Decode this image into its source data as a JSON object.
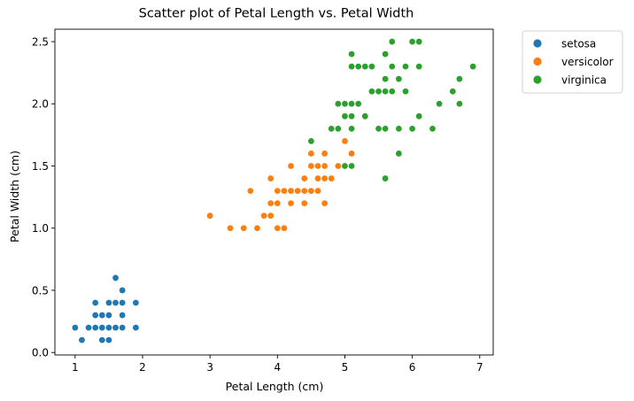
{
  "chart_data": {
    "type": "scatter",
    "title": "Scatter plot of Petal Length vs. Petal Width",
    "xlabel": "Petal Length (cm)",
    "ylabel": "Petal Width (cm)",
    "xlim": [
      0.7,
      7.2
    ],
    "ylim": [
      -0.02,
      2.6
    ],
    "xticks": [
      1,
      2,
      3,
      4,
      5,
      6,
      7
    ],
    "xtick_labels": [
      "1",
      "2",
      "3",
      "4",
      "5",
      "6",
      "7"
    ],
    "yticks": [
      0.0,
      0.5,
      1.0,
      1.5,
      2.0,
      2.5
    ],
    "ytick_labels": [
      "0.0",
      "0.5",
      "1.0",
      "1.5",
      "2.0",
      "2.5"
    ],
    "grid": false,
    "legend_position": "outside-upper-right",
    "series": [
      {
        "name": "setosa",
        "color": "#1f77b4",
        "points": [
          [
            1.0,
            0.2
          ],
          [
            1.1,
            0.1
          ],
          [
            1.2,
            0.2
          ],
          [
            1.3,
            0.2
          ],
          [
            1.3,
            0.3
          ],
          [
            1.3,
            0.4
          ],
          [
            1.4,
            0.1
          ],
          [
            1.4,
            0.2
          ],
          [
            1.4,
            0.3
          ],
          [
            1.5,
            0.1
          ],
          [
            1.5,
            0.2
          ],
          [
            1.5,
            0.3
          ],
          [
            1.5,
            0.4
          ],
          [
            1.6,
            0.2
          ],
          [
            1.6,
            0.4
          ],
          [
            1.6,
            0.6
          ],
          [
            1.7,
            0.2
          ],
          [
            1.7,
            0.3
          ],
          [
            1.7,
            0.4
          ],
          [
            1.7,
            0.5
          ],
          [
            1.9,
            0.2
          ],
          [
            1.9,
            0.4
          ]
        ]
      },
      {
        "name": "versicolor",
        "color": "#ff7f0e",
        "points": [
          [
            3.0,
            1.1
          ],
          [
            3.3,
            1.0
          ],
          [
            3.5,
            1.0
          ],
          [
            3.6,
            1.3
          ],
          [
            3.7,
            1.0
          ],
          [
            3.8,
            1.1
          ],
          [
            3.9,
            1.1
          ],
          [
            3.9,
            1.2
          ],
          [
            3.9,
            1.4
          ],
          [
            4.0,
            1.0
          ],
          [
            4.0,
            1.2
          ],
          [
            4.0,
            1.3
          ],
          [
            4.1,
            1.0
          ],
          [
            4.1,
            1.3
          ],
          [
            4.2,
            1.2
          ],
          [
            4.2,
            1.3
          ],
          [
            4.2,
            1.5
          ],
          [
            4.3,
            1.3
          ],
          [
            4.4,
            1.2
          ],
          [
            4.4,
            1.3
          ],
          [
            4.4,
            1.4
          ],
          [
            4.5,
            1.3
          ],
          [
            4.5,
            1.5
          ],
          [
            4.5,
            1.6
          ],
          [
            4.6,
            1.3
          ],
          [
            4.6,
            1.4
          ],
          [
            4.6,
            1.5
          ],
          [
            4.7,
            1.2
          ],
          [
            4.7,
            1.4
          ],
          [
            4.7,
            1.5
          ],
          [
            4.7,
            1.6
          ],
          [
            4.8,
            1.4
          ],
          [
            4.8,
            1.8
          ],
          [
            4.9,
            1.5
          ],
          [
            5.0,
            1.7
          ],
          [
            5.1,
            1.6
          ]
        ]
      },
      {
        "name": "virginica",
        "color": "#2ca02c",
        "points": [
          [
            4.5,
            1.7
          ],
          [
            4.8,
            1.8
          ],
          [
            4.9,
            1.8
          ],
          [
            4.9,
            2.0
          ],
          [
            5.0,
            1.5
          ],
          [
            5.0,
            1.9
          ],
          [
            5.0,
            2.0
          ],
          [
            5.1,
            1.5
          ],
          [
            5.1,
            1.8
          ],
          [
            5.1,
            1.9
          ],
          [
            5.1,
            2.0
          ],
          [
            5.1,
            2.3
          ],
          [
            5.1,
            2.4
          ],
          [
            5.2,
            2.0
          ],
          [
            5.2,
            2.3
          ],
          [
            5.3,
            1.9
          ],
          [
            5.3,
            2.3
          ],
          [
            5.4,
            2.1
          ],
          [
            5.4,
            2.3
          ],
          [
            5.5,
            1.8
          ],
          [
            5.5,
            2.1
          ],
          [
            5.6,
            1.4
          ],
          [
            5.6,
            1.8
          ],
          [
            5.6,
            2.1
          ],
          [
            5.6,
            2.2
          ],
          [
            5.6,
            2.4
          ],
          [
            5.7,
            2.1
          ],
          [
            5.7,
            2.3
          ],
          [
            5.7,
            2.5
          ],
          [
            5.8,
            1.6
          ],
          [
            5.8,
            1.8
          ],
          [
            5.8,
            2.2
          ],
          [
            5.9,
            2.1
          ],
          [
            5.9,
            2.3
          ],
          [
            6.0,
            1.8
          ],
          [
            6.0,
            2.5
          ],
          [
            6.1,
            1.9
          ],
          [
            6.1,
            2.3
          ],
          [
            6.1,
            2.5
          ],
          [
            6.3,
            1.8
          ],
          [
            6.4,
            2.0
          ],
          [
            6.6,
            2.1
          ],
          [
            6.7,
            2.0
          ],
          [
            6.7,
            2.2
          ],
          [
            6.9,
            2.3
          ]
        ]
      }
    ]
  }
}
